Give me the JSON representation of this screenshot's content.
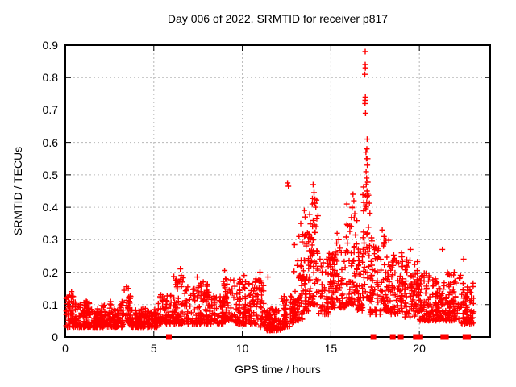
{
  "chart_data": {
    "type": "scatter",
    "title": "Day 006 of 2022, SRMTID for receiver p817",
    "xlabel": "GPS time / hours",
    "ylabel": "SRMTID / TECUs",
    "xlim": [
      0,
      24
    ],
    "ylim": [
      0,
      0.9
    ],
    "xticks": {
      "values": [
        0,
        5,
        10,
        15,
        20
      ],
      "labels": [
        "0",
        "5",
        "10",
        "15",
        "20"
      ]
    },
    "yticks": {
      "values": [
        0,
        0.1,
        0.2,
        0.3,
        0.4,
        0.5,
        0.6,
        0.7,
        0.8,
        0.9
      ],
      "labels": [
        "0",
        "0.1",
        "0.2",
        "0.3",
        "0.4",
        "0.5",
        "0.6",
        "0.7",
        "0.8",
        "0.9"
      ]
    },
    "grid": true,
    "legend": "none",
    "colors": {
      "points": "#ff0000",
      "grid": "#b8b8b8",
      "axis": "#000000",
      "text": "#000000",
      "background": "#ffffff"
    },
    "series": [
      {
        "name": "SRMTID",
        "marker": "plus",
        "bands_format": [
          "x_start_hours",
          "x_end_hours",
          "y_min_TECUs",
          "y_max_TECUs",
          "n_points"
        ],
        "bands": [
          [
            0.05,
            0.5,
            0.03,
            0.13,
            55
          ],
          [
            0.5,
            1.5,
            0.03,
            0.11,
            110
          ],
          [
            1.5,
            2.45,
            0.03,
            0.1,
            100
          ],
          [
            2.45,
            3.3,
            0.03,
            0.11,
            90
          ],
          [
            3.3,
            3.7,
            0.04,
            0.15,
            40
          ],
          [
            3.7,
            5.25,
            0.03,
            0.09,
            150
          ],
          [
            5.25,
            6.1,
            0.04,
            0.13,
            75
          ],
          [
            6.1,
            7.0,
            0.04,
            0.19,
            85
          ],
          [
            7.0,
            8.2,
            0.04,
            0.17,
            110
          ],
          [
            8.2,
            8.9,
            0.04,
            0.13,
            65
          ],
          [
            8.9,
            9.6,
            0.05,
            0.19,
            65
          ],
          [
            9.6,
            10.7,
            0.04,
            0.18,
            110
          ],
          [
            10.7,
            11.3,
            0.03,
            0.18,
            55
          ],
          [
            11.3,
            12.2,
            0.02,
            0.09,
            90
          ],
          [
            12.2,
            12.9,
            0.03,
            0.13,
            70
          ],
          [
            12.9,
            13.4,
            0.05,
            0.3,
            55
          ],
          [
            13.4,
            13.8,
            0.08,
            0.33,
            50
          ],
          [
            13.8,
            14.3,
            0.1,
            0.44,
            55
          ],
          [
            14.3,
            15.1,
            0.07,
            0.26,
            80
          ],
          [
            15.1,
            15.8,
            0.09,
            0.3,
            65
          ],
          [
            15.8,
            16.5,
            0.1,
            0.42,
            65
          ],
          [
            16.5,
            16.8,
            0.08,
            0.28,
            35
          ],
          [
            16.8,
            17.2,
            0.12,
            0.5,
            45
          ],
          [
            17.2,
            17.8,
            0.07,
            0.33,
            60
          ],
          [
            17.8,
            18.35,
            0.08,
            0.3,
            55
          ],
          [
            18.35,
            19.15,
            0.07,
            0.26,
            75
          ],
          [
            19.15,
            19.95,
            0.06,
            0.24,
            75
          ],
          [
            19.95,
            20.7,
            0.05,
            0.2,
            75
          ],
          [
            20.7,
            21.5,
            0.05,
            0.18,
            75
          ],
          [
            21.5,
            22.35,
            0.05,
            0.2,
            80
          ],
          [
            22.35,
            23.15,
            0.04,
            0.17,
            70
          ]
        ],
        "peak_points": [
          [
            0.35,
            0.14
          ],
          [
            3.45,
            0.155
          ],
          [
            6.5,
            0.21
          ],
          [
            6.55,
            0.19
          ],
          [
            7.45,
            0.185
          ],
          [
            9.0,
            0.205
          ],
          [
            10.1,
            0.19
          ],
          [
            11.0,
            0.2
          ],
          [
            11.45,
            0.185
          ],
          [
            12.55,
            0.475
          ],
          [
            12.6,
            0.465
          ],
          [
            13.2,
            0.31
          ],
          [
            13.3,
            0.35
          ],
          [
            13.5,
            0.39
          ],
          [
            13.55,
            0.37
          ],
          [
            14.0,
            0.47
          ],
          [
            14.05,
            0.445
          ],
          [
            14.1,
            0.425
          ],
          [
            13.95,
            0.41
          ],
          [
            14.15,
            0.4
          ],
          [
            15.35,
            0.32
          ],
          [
            15.45,
            0.3
          ],
          [
            16.25,
            0.44
          ],
          [
            16.3,
            0.42
          ],
          [
            16.2,
            0.4
          ],
          [
            16.35,
            0.38
          ],
          [
            16.94,
            0.88
          ],
          [
            16.94,
            0.84
          ],
          [
            16.95,
            0.83
          ],
          [
            16.92,
            0.81
          ],
          [
            16.95,
            0.74
          ],
          [
            16.94,
            0.73
          ],
          [
            16.93,
            0.72
          ],
          [
            16.96,
            0.69
          ],
          [
            17.05,
            0.61
          ],
          [
            17.03,
            0.58
          ],
          [
            16.98,
            0.57
          ],
          [
            17.01,
            0.55
          ],
          [
            17.08,
            0.55
          ],
          [
            17.06,
            0.53
          ],
          [
            16.99,
            0.51
          ],
          [
            17.02,
            0.49
          ],
          [
            17.0,
            0.47
          ],
          [
            17.04,
            0.45
          ],
          [
            17.9,
            0.33
          ],
          [
            18.0,
            0.31
          ],
          [
            19.5,
            0.27
          ],
          [
            21.3,
            0.27
          ],
          [
            22.5,
            0.24
          ]
        ]
      },
      {
        "name": "zero flags",
        "marker": "filled-square",
        "y": 0,
        "x_points": [
          5.85,
          17.4,
          18.5,
          18.95,
          19.8,
          20.05,
          21.35,
          21.5,
          22.6,
          22.75
        ]
      }
    ]
  }
}
